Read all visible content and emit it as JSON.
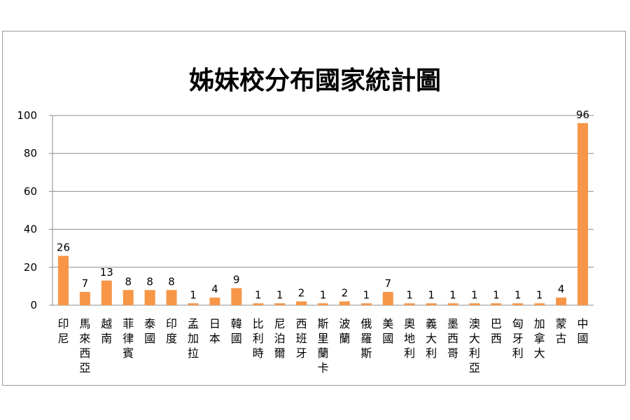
{
  "chart_data": {
    "type": "bar",
    "title": "姊妹校分布國家統計圖",
    "xlabel": "",
    "ylabel": "",
    "ylim": [
      0,
      100
    ],
    "yticks": [
      0,
      20,
      40,
      60,
      80,
      100
    ],
    "grid": true,
    "legend": "none",
    "bar_color": "#f79646",
    "categories": [
      "印尼",
      "馬來西亞",
      "越南",
      "菲律賓",
      "泰國",
      "印度",
      "孟加拉",
      "日本",
      "韓國",
      "比利時",
      "尼泊爾",
      "西班牙",
      "斯里蘭卡",
      "波蘭",
      "俄羅斯",
      "美國",
      "奧地利",
      "義大利",
      "墨西哥",
      "澳大利亞",
      "巴西",
      "匈牙利",
      "加拿大",
      "蒙古",
      "中國"
    ],
    "values": [
      26,
      7,
      13,
      8,
      8,
      8,
      1,
      4,
      9,
      1,
      1,
      2,
      1,
      2,
      1,
      7,
      1,
      1,
      1,
      1,
      1,
      1,
      1,
      4,
      96
    ]
  }
}
